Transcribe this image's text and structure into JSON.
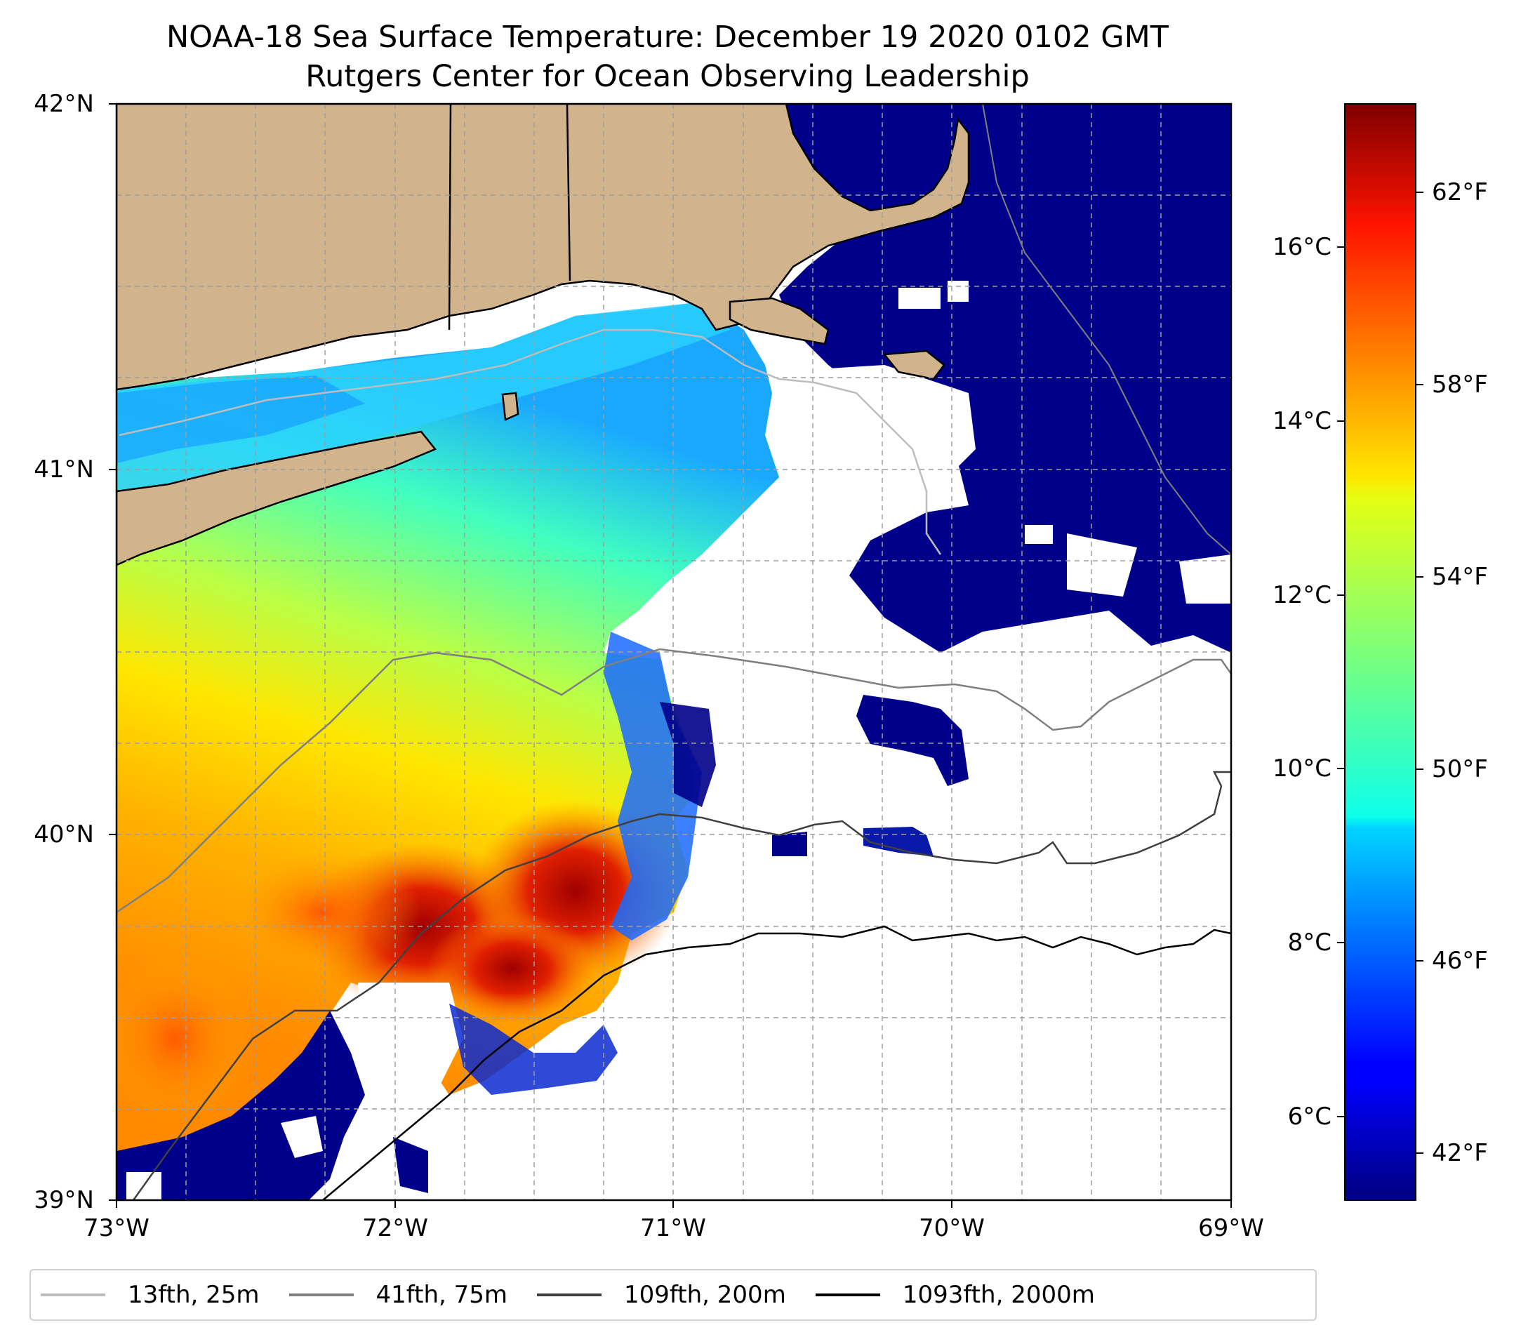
{
  "title": "NOAA-18 Sea Surface Temperature: December 19 2020 0102 GMT",
  "subtitle": "Rutgers Center for Ocean Observing Leadership",
  "map": {
    "lon_ticks": [
      "73°W",
      "72°W",
      "71°W",
      "70°W",
      "69°W"
    ],
    "lat_ticks": [
      "42°N",
      "41°N",
      "40°N",
      "39°N"
    ],
    "land_color": "#d2b48c",
    "missing_color": "#ffffff",
    "ocean_cold_color": "#00008b"
  },
  "colorbar": {
    "colormap": "jet",
    "celsius_ticks": [
      "16°C",
      "14°C",
      "12°C",
      "10°C",
      "8°C",
      "6°C"
    ],
    "fahrenheit_ticks": [
      "62°F",
      "58°F",
      "54°F",
      "50°F",
      "46°F",
      "42°F"
    ]
  },
  "legend": {
    "items": [
      {
        "label": "13fth, 25m",
        "color": "#bdbdbd"
      },
      {
        "label": "41fth, 75m",
        "color": "#7f7f7f"
      },
      {
        "label": "109fth, 200m",
        "color": "#3f3f3f"
      },
      {
        "label": "1093fth, 2000m",
        "color": "#000000"
      }
    ]
  }
}
